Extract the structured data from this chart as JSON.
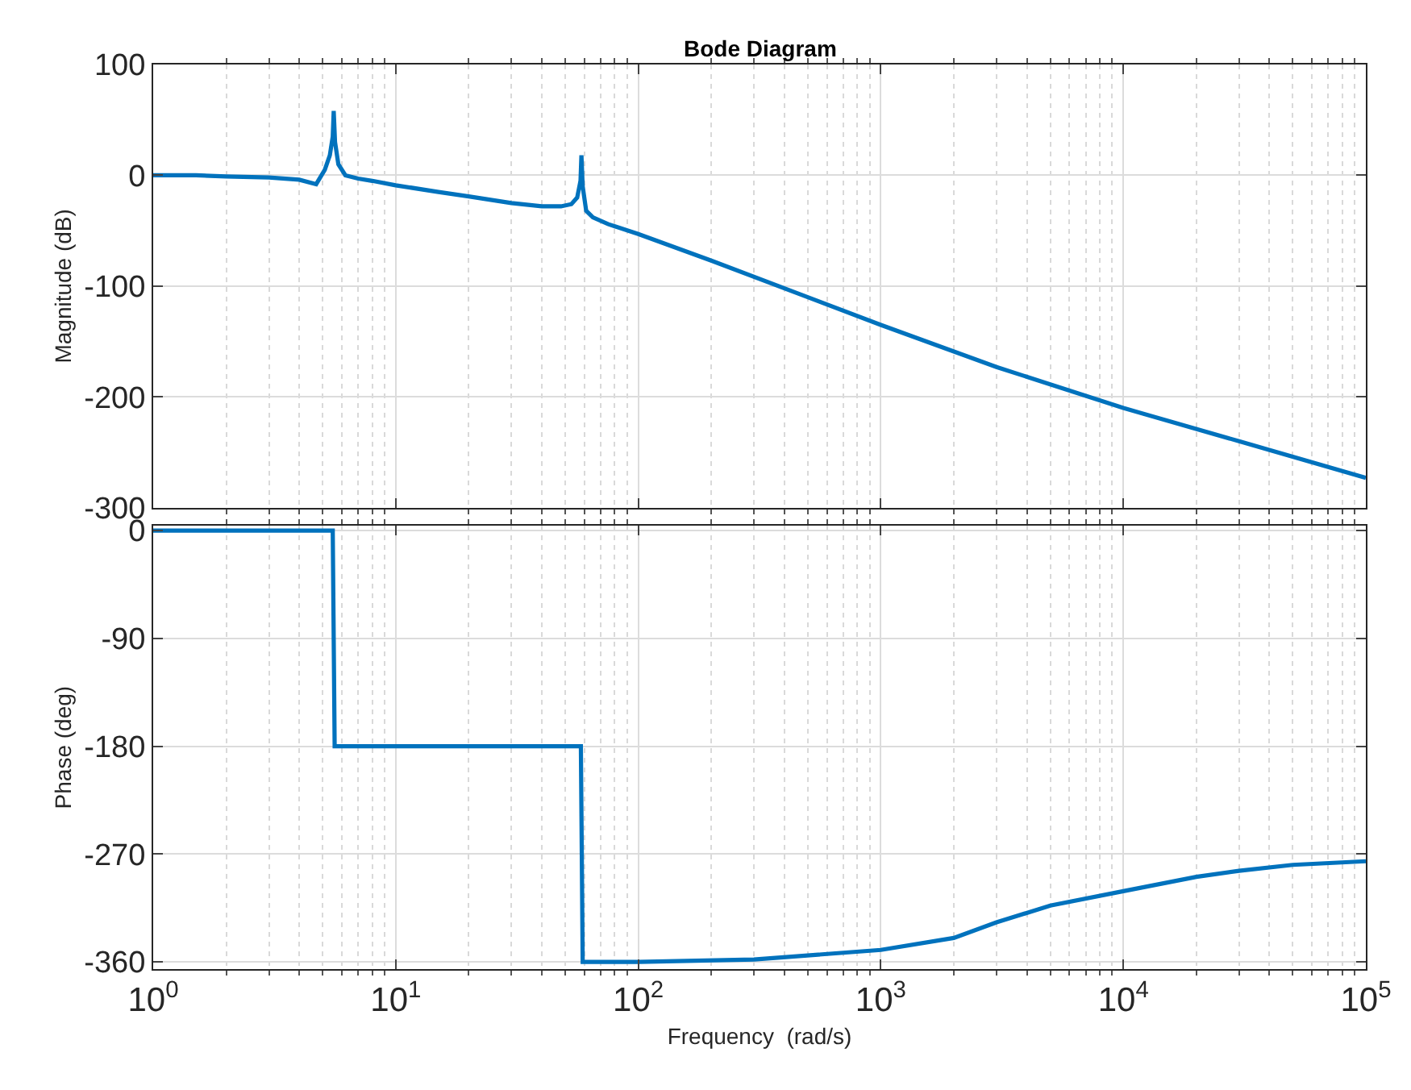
{
  "chart_data": [
    {
      "type": "line",
      "title": "Bode Diagram",
      "ylabel": "Magnitude (dB)",
      "log": "x",
      "grid": true,
      "tick_labels": "y",
      "xlim": [
        1,
        100000
      ],
      "xticks": [
        {
          "value": 1,
          "label": null
        },
        {
          "value": 10,
          "label": null
        },
        {
          "value": 100,
          "label": null
        },
        {
          "value": 1000,
          "label": null
        },
        {
          "value": 10000,
          "label": null
        },
        {
          "value": 100000,
          "label": null
        }
      ],
      "ylim": [
        -300,
        100
      ],
      "yticks": [
        -300,
        -200,
        -100,
        0,
        100
      ],
      "series": [
        {
          "color": "#0072bd",
          "x": [
            1,
            1.5,
            2,
            3,
            4,
            4.7,
            5.1,
            5.35,
            5.5,
            5.55,
            5.62,
            5.8,
            6.2,
            7,
            8,
            10,
            15,
            20,
            30,
            40,
            48,
            53,
            56,
            57.8,
            58.3,
            59,
            61,
            65,
            75,
            100,
            200,
            500,
            1000,
            3000,
            10000,
            30000,
            100000
          ],
          "values": [
            0,
            0,
            -1,
            -2,
            -4,
            -8,
            5,
            18,
            35,
            58,
            30,
            10,
            0,
            -3,
            -5,
            -9,
            -15,
            -19,
            -25,
            -28,
            -28,
            -26,
            -20,
            -5,
            18,
            -10,
            -32,
            -38,
            -44,
            -53,
            -77,
            -110,
            -135,
            -173,
            -210,
            -240,
            -273
          ]
        }
      ]
    },
    {
      "type": "line",
      "xlabel": "Frequency  (rad/s)",
      "ylabel": "Phase (deg)",
      "log": "x",
      "grid": true,
      "xlim": [
        1,
        100000
      ],
      "xticks": [
        {
          "value": 1,
          "label": "10$^{0}$"
        },
        {
          "value": 10,
          "label": "10$^{1}$"
        },
        {
          "value": 100,
          "label": "10$^{2}$"
        },
        {
          "value": 1000,
          "label": "10$^{3}$"
        },
        {
          "value": 10000,
          "label": "10$^{4}$"
        },
        {
          "value": 100000,
          "label": "10$^{5}$"
        }
      ],
      "ylim": [
        -366,
        4
      ],
      "yticks": [
        -360,
        -270,
        -180,
        -90,
        0
      ],
      "series": [
        {
          "color": "#0072bd",
          "x": [
            1,
            5.5,
            5.6,
            58,
            59,
            100,
            300,
            1000,
            2000,
            3000,
            5000,
            10000,
            20000,
            30000,
            50000,
            100000
          ],
          "values": [
            0,
            0,
            -180,
            -180,
            -360,
            -360,
            -358,
            -350,
            -340,
            -327,
            -313,
            -301,
            -289,
            -284,
            -279,
            -276
          ]
        }
      ]
    }
  ]
}
